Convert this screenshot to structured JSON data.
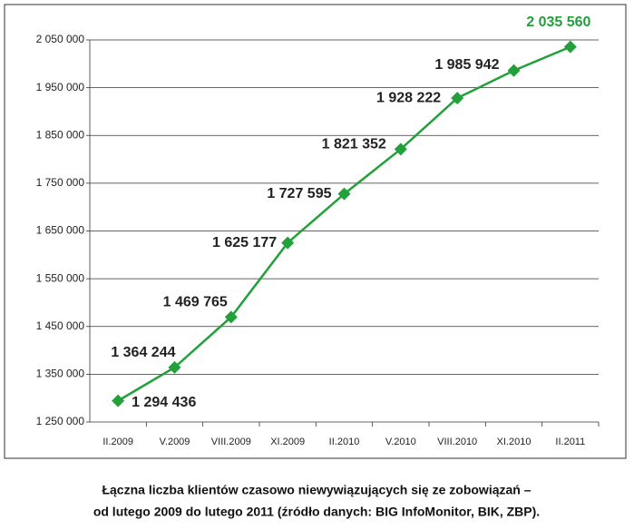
{
  "chart_data": {
    "type": "line",
    "categories": [
      "II.2009",
      "V.2009",
      "VIII.2009",
      "XI.2009",
      "II.2010",
      "V.2010",
      "VIII.2010",
      "XI.2010",
      "II.2011"
    ],
    "series": [
      {
        "color": "#22a03a",
        "values": [
          1294436,
          1364244,
          1469765,
          1625177,
          1727595,
          1821352,
          1928222,
          1985942,
          2035560
        ],
        "value_labels": [
          "1 294 436",
          "1 364 244",
          "1 469 765",
          "1 625 177",
          "1 727 595",
          "1 821 352",
          "1 928 222",
          "1 985 942",
          "2 035 560"
        ]
      }
    ],
    "ylim": [
      1250000,
      2050000
    ],
    "yticks": [
      {
        "value": 1250000,
        "label": "1 250 000"
      },
      {
        "value": 1350000,
        "label": "1 350 000"
      },
      {
        "value": 1450000,
        "label": "1 450 000"
      },
      {
        "value": 1550000,
        "label": "1 550 000"
      },
      {
        "value": 1650000,
        "label": "1 650 000"
      },
      {
        "value": 1750000,
        "label": "1 750 000"
      },
      {
        "value": 1850000,
        "label": "1 850 000"
      },
      {
        "value": 1950000,
        "label": "1 950 000"
      },
      {
        "value": 2050000,
        "label": "2 050 000"
      }
    ],
    "grid": true,
    "caption": [
      "Łączna liczba klientów czasowo niewywiązujących się ze zobowiązań –",
      "od lutego 2009 do lutego 2011 (źródło danych: BIG InfoMonitor, BIK, ZBP)."
    ]
  }
}
